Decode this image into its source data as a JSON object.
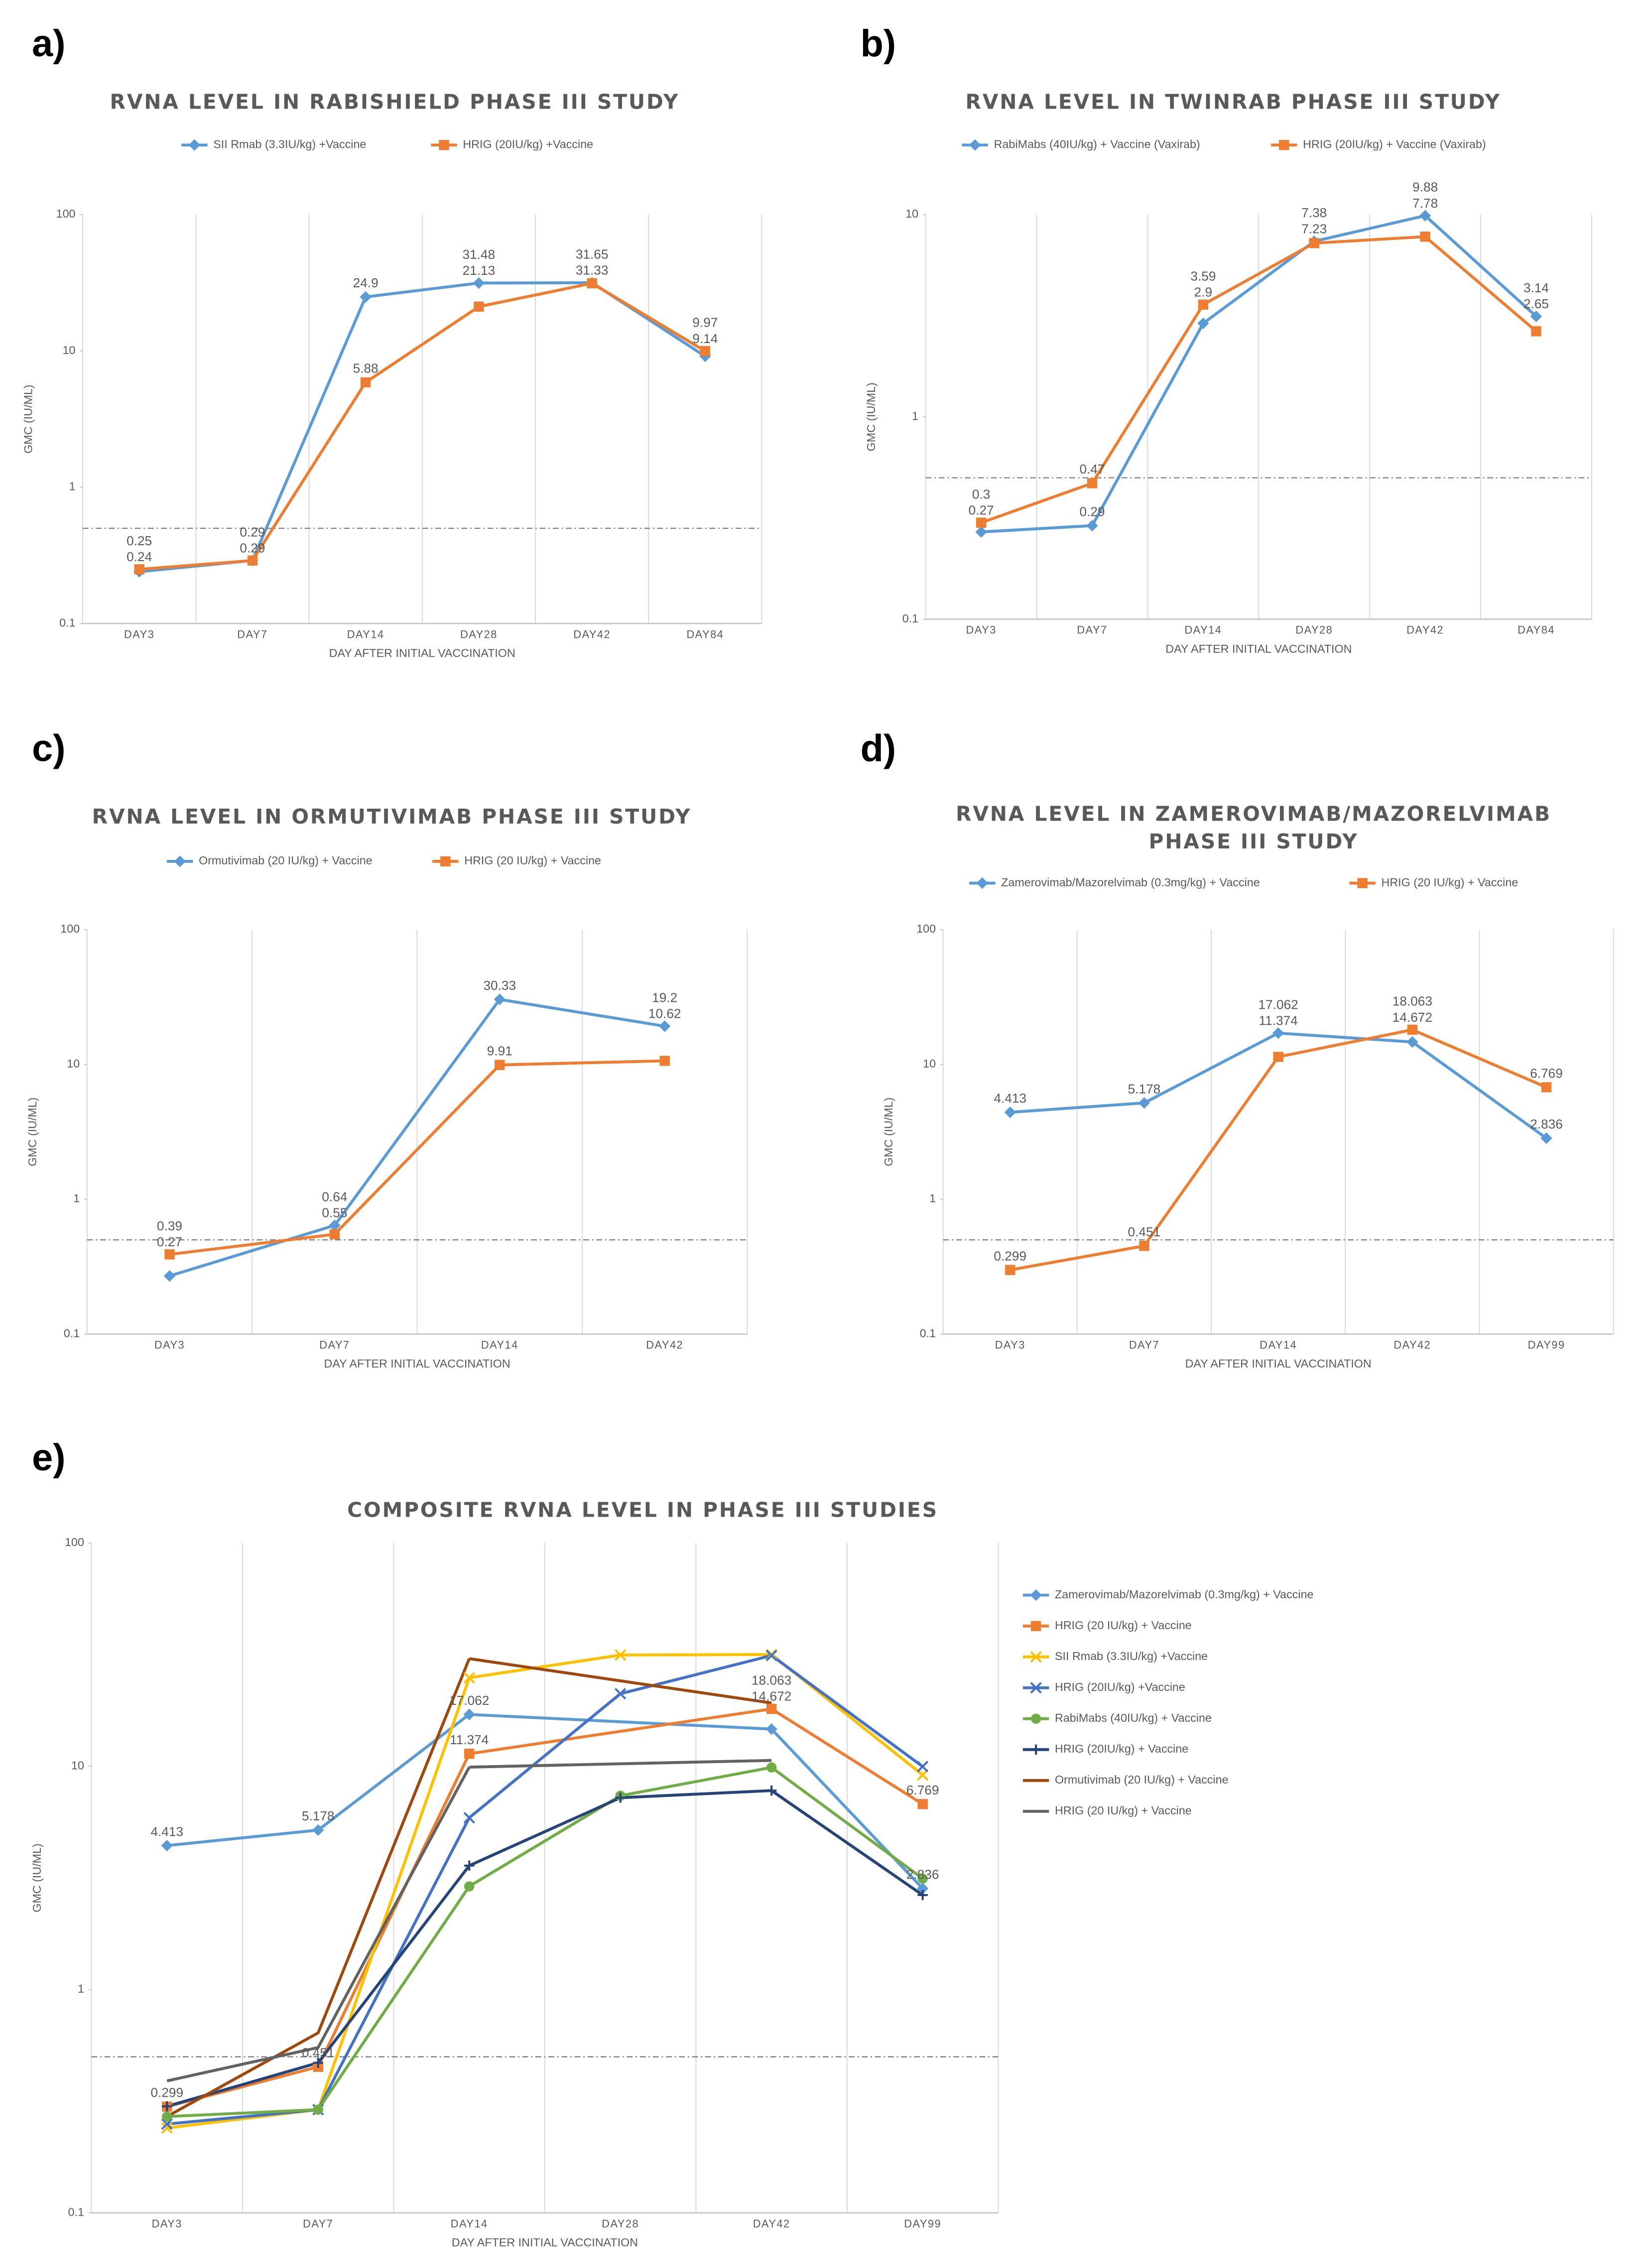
{
  "chart_data": [
    {
      "type": "line",
      "label": "a)",
      "title": "RVNA LEVEL IN RABISHIELD PHASE III STUDY",
      "categories": [
        "DAY3",
        "DAY7",
        "DAY14",
        "DAY28",
        "DAY42",
        "DAY84"
      ],
      "series": [
        {
          "name": "SII Rmab (3.3IU/kg) +Vaccine",
          "color": "#5b9bd5",
          "marker": "diamond",
          "show_labels": true,
          "values": [
            0.24,
            0.29,
            24.9,
            31.48,
            31.65,
            9.14
          ]
        },
        {
          "name": "HRIG (20IU/kg) +Vaccine",
          "color": "#ed7d31",
          "marker": "square",
          "show_labels": true,
          "values": [
            0.25,
            0.29,
            5.88,
            21.13,
            31.33,
            9.97
          ]
        }
      ],
      "ylabel": "GMC (IU/ML)",
      "xlabel": "DAY AFTER INITIAL VACCINATION",
      "log_y": true,
      "ylim": [
        0.1,
        100
      ],
      "yticks": [
        0.1,
        1,
        10,
        100
      ],
      "reference_line": 0.5,
      "legend": "top"
    },
    {
      "type": "line",
      "label": "b)",
      "title": "RVNA LEVEL IN TWINRAB PHASE III STUDY",
      "categories": [
        "DAY3",
        "DAY7",
        "DAY14",
        "DAY28",
        "DAY42",
        "DAY84"
      ],
      "series": [
        {
          "name": "RabiMabs (40IU/kg) + Vaccine (Vaxirab)",
          "color": "#5b9bd5",
          "marker": "diamond",
          "show_labels": true,
          "values": [
            0.27,
            0.29,
            2.9,
            7.38,
            9.88,
            3.14
          ]
        },
        {
          "name": "HRIG (20IU/kg) + Vaccine (Vaxirab)",
          "color": "#ed7d31",
          "marker": "square",
          "show_labels": true,
          "values": [
            0.3,
            0.47,
            3.59,
            7.23,
            7.78,
            2.65
          ]
        }
      ],
      "ylabel": "GMC (IU/ML)",
      "xlabel": "DAY AFTER INITIAL VACCINATION",
      "log_y": true,
      "ylim": [
        0.1,
        10
      ],
      "yticks": [
        0.1,
        1,
        10
      ],
      "reference_line": 0.5,
      "legend": "top"
    },
    {
      "type": "line",
      "label": "c)",
      "title": "RVNA LEVEL IN ORMUTIVIMAB PHASE III STUDY",
      "categories": [
        "DAY3",
        "DAY7",
        "DAY14",
        "DAY42"
      ],
      "series": [
        {
          "name": "Ormutivimab (20 IU/kg) + Vaccine",
          "color": "#5b9bd5",
          "marker": "diamond",
          "show_labels": true,
          "values": [
            0.27,
            0.64,
            30.33,
            19.2
          ]
        },
        {
          "name": "HRIG (20 IU/kg) + Vaccine",
          "color": "#ed7d31",
          "marker": "square",
          "show_labels": true,
          "values": [
            0.39,
            0.55,
            9.91,
            10.62
          ]
        }
      ],
      "ylabel": "GMC (IU/ML)",
      "xlabel": "DAY AFTER INITIAL VACCINATION",
      "log_y": true,
      "ylim": [
        0.1,
        100
      ],
      "yticks": [
        0.1,
        1,
        10,
        100
      ],
      "reference_line": 0.5,
      "legend": "top"
    },
    {
      "type": "line",
      "label": "d)",
      "title": "RVNA LEVEL IN ZAMEROVIMAB/MAZORELVIMAB PHASE III STUDY",
      "categories": [
        "DAY3",
        "DAY7",
        "DAY14",
        "DAY42",
        "DAY99"
      ],
      "series": [
        {
          "name": "Zamerovimab/Mazorelvimab (0.3mg/kg) + Vaccine",
          "color": "#5b9bd5",
          "marker": "diamond",
          "show_labels": true,
          "values": [
            4.413,
            5.178,
            17.062,
            14.672,
            2.836
          ]
        },
        {
          "name": "HRIG (20 IU/kg) + Vaccine",
          "color": "#ed7d31",
          "marker": "square",
          "show_labels": true,
          "values": [
            0.299,
            0.451,
            11.374,
            18.063,
            6.769
          ]
        }
      ],
      "ylabel": "GMC (IU/ML)",
      "xlabel": "DAY AFTER INITIAL VACCINATION",
      "log_y": true,
      "ylim": [
        0.1,
        100
      ],
      "yticks": [
        0.1,
        1,
        10,
        100
      ],
      "reference_line": 0.5,
      "legend": "top"
    },
    {
      "type": "line",
      "label": "e)",
      "title": "COMPOSITE RVNA LEVEL IN PHASE III STUDIES",
      "categories": [
        "DAY3",
        "DAY7",
        "DAY14",
        "DAY28",
        "DAY42",
        "DAY99"
      ],
      "series": [
        {
          "name": "Zamerovimab/Mazorelvimab (0.3mg/kg) + Vaccine",
          "color": "#5b9bd5",
          "marker": "diamond",
          "show_labels": true,
          "values": [
            4.413,
            5.178,
            17.062,
            null,
            14.672,
            2.836
          ]
        },
        {
          "name": "HRIG (20 IU/kg) + Vaccine",
          "color": "#ed7d31",
          "marker": "square",
          "show_labels": true,
          "values": [
            0.299,
            0.451,
            11.374,
            null,
            18.063,
            6.769
          ]
        },
        {
          "name": "SII Rmab (3.3IU/kg) +Vaccine",
          "color": "#ffc000",
          "marker": "x",
          "show_labels": false,
          "values": [
            0.24,
            0.29,
            24.9,
            31.48,
            31.65,
            9.14
          ]
        },
        {
          "name": "HRIG (20IU/kg) +Vaccine",
          "color": "#4472c4",
          "marker": "x",
          "show_labels": false,
          "values": [
            0.25,
            0.29,
            5.88,
            21.13,
            31.33,
            9.97
          ]
        },
        {
          "name": "RabiMabs (40IU/kg) + Vaccine",
          "color": "#70ad47",
          "marker": "circle",
          "show_labels": false,
          "values": [
            0.27,
            0.29,
            2.9,
            7.38,
            9.88,
            3.14
          ]
        },
        {
          "name": "HRIG (20IU/kg) + Vaccine",
          "color": "#264478",
          "marker": "plus",
          "show_labels": false,
          "values": [
            0.3,
            0.47,
            3.59,
            7.23,
            7.78,
            2.65
          ]
        },
        {
          "name": "Ormutivimab (20 IU/kg) + Vaccine",
          "color": "#9e480e",
          "marker": "none",
          "show_labels": false,
          "values": [
            0.27,
            0.64,
            30.33,
            null,
            19.2,
            null
          ]
        },
        {
          "name": "HRIG (20 IU/kg) + Vaccine",
          "color": "#636363",
          "marker": "none",
          "show_labels": false,
          "values": [
            0.39,
            0.55,
            9.91,
            null,
            10.62,
            null
          ]
        }
      ],
      "ylabel": "GMC (IU/ML)",
      "xlabel": "DAY AFTER INITIAL VACCINATION",
      "log_y": true,
      "ylim": [
        0.1,
        100
      ],
      "yticks": [
        0.1,
        1,
        10,
        100
      ],
      "reference_line": 0.5,
      "legend": "right"
    }
  ]
}
